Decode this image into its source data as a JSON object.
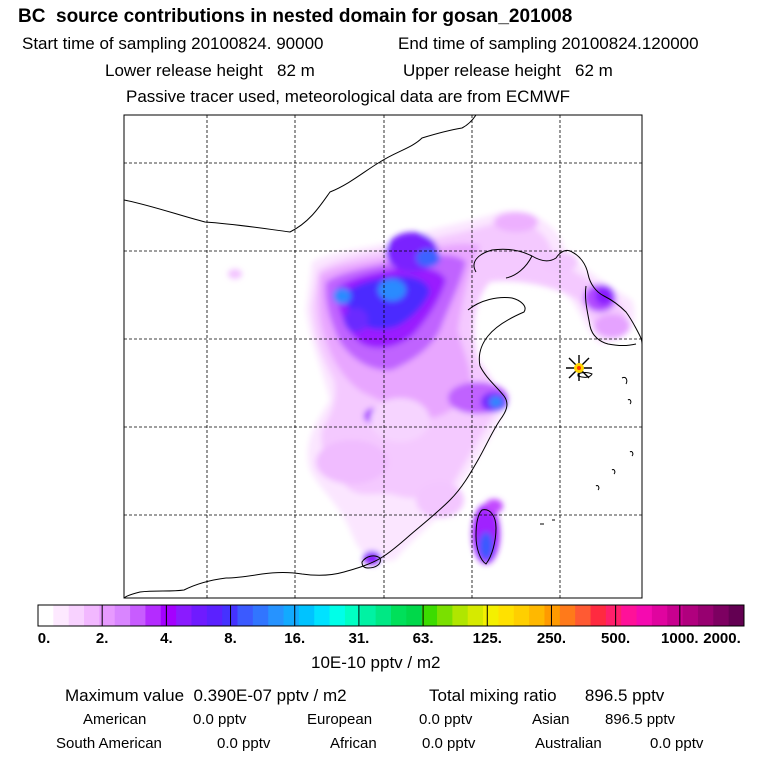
{
  "header": {
    "title": "BC  source contributions in nested domain for gosan_201008",
    "start_label": "Start time of sampling 20100824. 90000",
    "end_label": "End time of sampling 20100824.120000",
    "lower_label": "Lower release height   82 m",
    "upper_label": "Upper release height   62 m",
    "tracer_label": "Passive tracer used, meteorological data are from ECMWF"
  },
  "colorbar": {
    "colors": [
      "#ffffff",
      "#fde9ff",
      "#f8d2ff",
      "#f2b8ff",
      "#e79aff",
      "#d985ff",
      "#c85cff",
      "#b42cff",
      "#a400ff",
      "#8a1bff",
      "#6f1bff",
      "#5b21ff",
      "#4532ff",
      "#3b5aff",
      "#3175ff",
      "#2693ff",
      "#12aaff",
      "#00c3ff",
      "#00e2ff",
      "#00ffe8",
      "#00ffc4",
      "#00f2a3",
      "#00e884",
      "#00e05a",
      "#00d84a",
      "#3cdc00",
      "#7ae000",
      "#b0e600",
      "#d6ea00",
      "#f4f000",
      "#ffe100",
      "#ffcf00",
      "#ffb800",
      "#ff9a00",
      "#ff7a1a",
      "#ff5a33",
      "#ff2a40",
      "#ff1f6b",
      "#ff1199",
      "#f50ab0",
      "#e0049f",
      "#c8008f",
      "#b0007e",
      "#970070",
      "#7d0061",
      "#630052"
    ],
    "tick_labels": [
      "0.",
      "2.",
      "4.",
      "8.",
      "16.",
      "31.",
      "63.",
      "125.",
      "250.",
      "500.",
      "1000.",
      "2000."
    ],
    "unit_label": "10E-10 pptv / m2"
  },
  "map": {
    "land_color": "#ffffff",
    "line_color": "#000000",
    "receptor_marker": "starburst-marker"
  },
  "footer": {
    "max_label": "Maximum value  0.390E-07 pptv / m2",
    "total_label": "Total mixing ratio      896.5 pptv",
    "american_label": "American",
    "american_value": "0.0 pptv",
    "european_label": "European",
    "european_value": "0.0 pptv",
    "asian_label": "Asian",
    "asian_value": "896.5 pptv",
    "south_american_label": "South American",
    "south_american_value": "0.0 pptv",
    "african_label": "African",
    "african_value": "0.0 pptv",
    "australian_label": "Australian",
    "australian_value": "0.0 pptv"
  }
}
